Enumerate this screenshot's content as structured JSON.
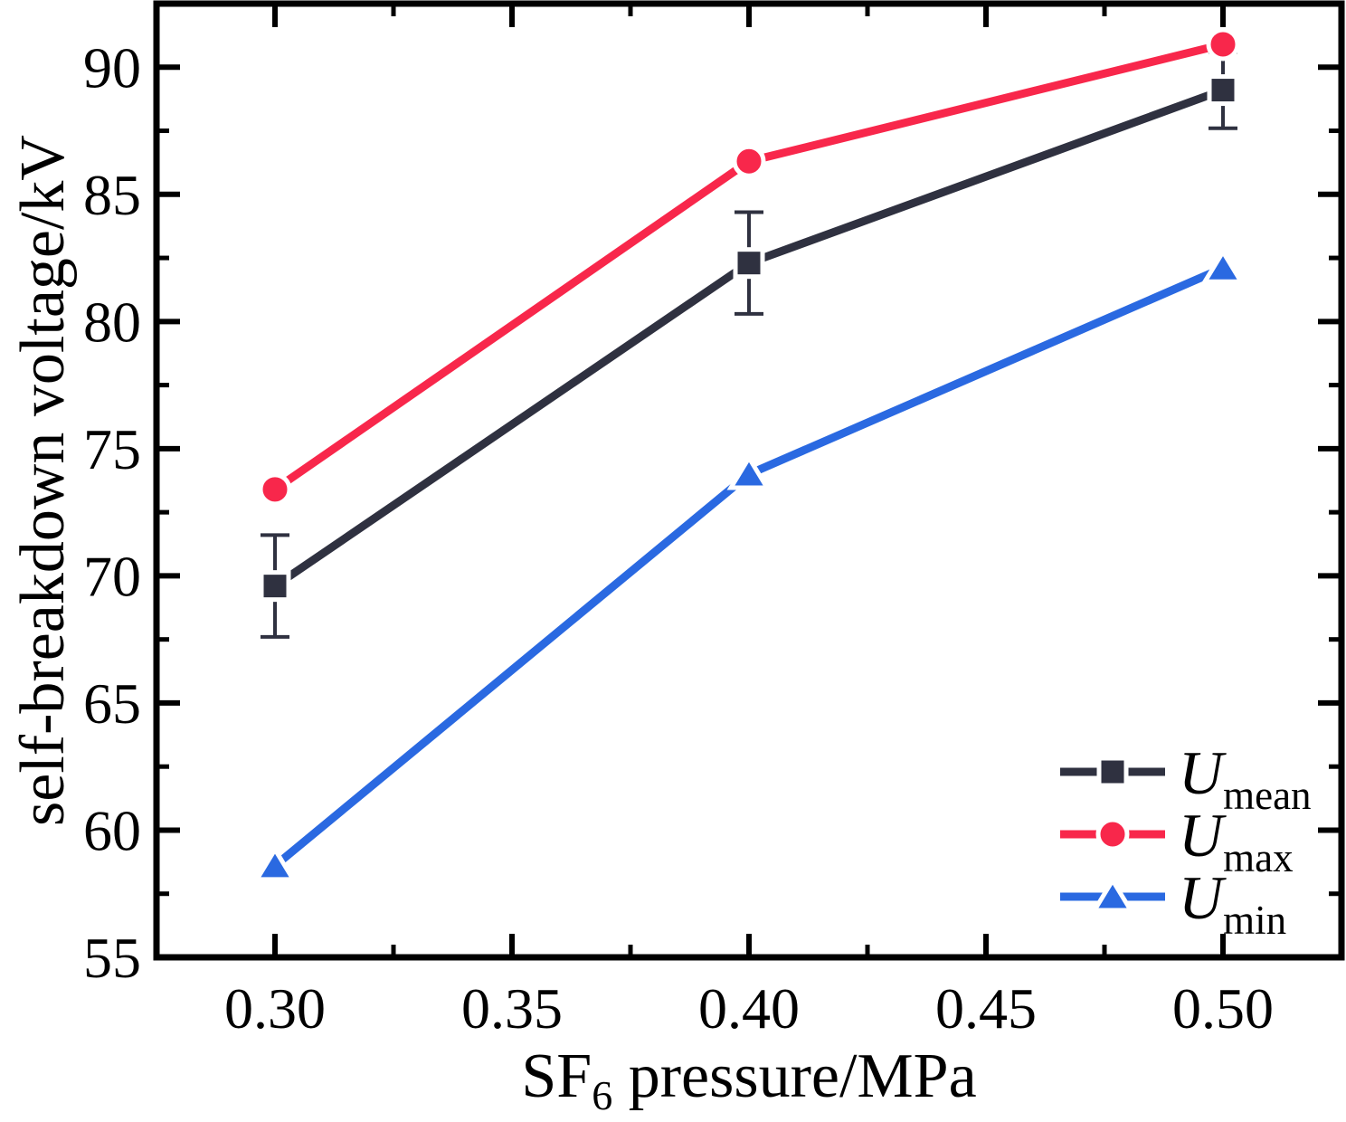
{
  "figure": {
    "background": "#ffffff",
    "frame_color": "#000000"
  },
  "chart_data": {
    "type": "line",
    "title": "",
    "xlabel_parts": [
      {
        "text": "SF",
        "sub": false
      },
      {
        "text": "6",
        "sub": true
      },
      {
        "text": " pressure/MPa",
        "sub": false
      }
    ],
    "ylabel": "self-breakdown voltage/kV",
    "x": [
      0.3,
      0.4,
      0.5
    ],
    "series": [
      {
        "name": "U_mean",
        "legend_main": "U",
        "legend_sub": "mean",
        "color": "#2f3140",
        "marker": "square",
        "values": [
          69.6,
          82.3,
          89.1
        ],
        "error": [
          2.0,
          2.0,
          1.5
        ]
      },
      {
        "name": "U_max",
        "legend_main": "U",
        "legend_sub": "max",
        "color": "#f8274b",
        "marker": "circle",
        "values": [
          73.4,
          86.3,
          90.9
        ],
        "error": null
      },
      {
        "name": "U_min",
        "legend_main": "U",
        "legend_sub": "min",
        "color": "#2a69e1",
        "marker": "triangle",
        "values": [
          58.6,
          74.0,
          82.1
        ],
        "error": null
      }
    ],
    "xlim": [
      0.275,
      0.525
    ],
    "ylim": [
      55,
      92.5
    ],
    "xticks": {
      "major": [
        0.3,
        0.35,
        0.4,
        0.45,
        0.5
      ],
      "labels": [
        "0.30",
        "0.35",
        "0.40",
        "0.45",
        "0.50"
      ],
      "minor": [
        0.325,
        0.375,
        0.425,
        0.475
      ]
    },
    "yticks": {
      "major": [
        55,
        60,
        65,
        70,
        75,
        80,
        85,
        90
      ],
      "labels": [
        "55",
        "60",
        "65",
        "70",
        "75",
        "80",
        "85",
        "90"
      ],
      "minor": [
        57.5,
        62.5,
        67.5,
        72.5,
        77.5,
        82.5,
        87.5
      ]
    },
    "grid": false,
    "legend_position": "lower right",
    "axis_color": "#000000"
  }
}
